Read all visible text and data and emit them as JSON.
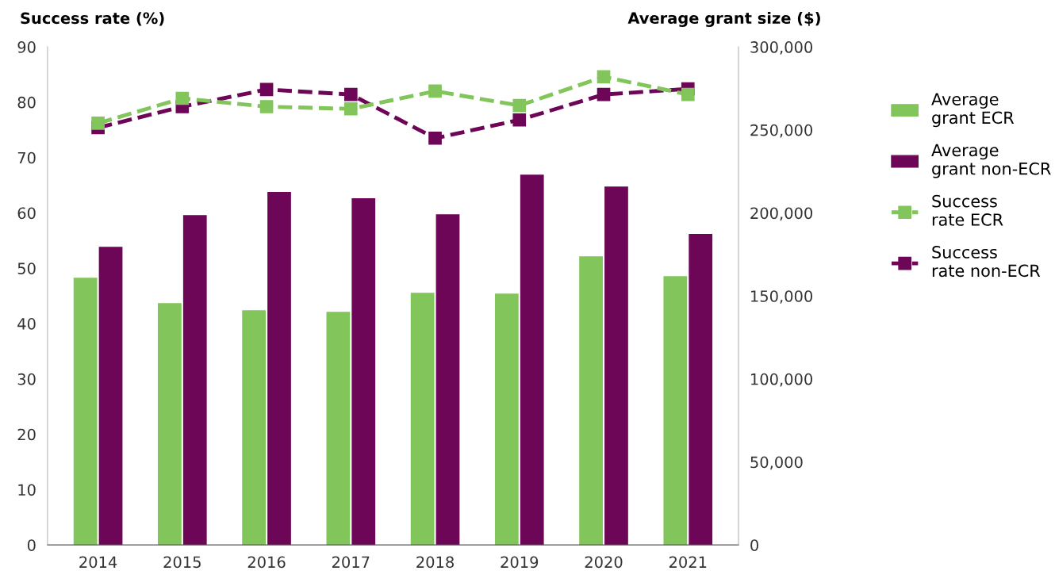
{
  "chart_data": {
    "type": "bar",
    "ylabel": "Success rate (%)",
    "y2label": "Average grant size ($)",
    "categories": [
      "2014",
      "2015",
      "2016",
      "2017",
      "2018",
      "2019",
      "2020",
      "2021"
    ],
    "series": [
      {
        "name": "Average grant ECR",
        "axis": "y2",
        "color": "#82c55b",
        "values": [
          161000,
          145700,
          141400,
          140400,
          151900,
          151400,
          173900,
          161900
        ]
      },
      {
        "name": "Average grant non-ECR",
        "axis": "y2",
        "color": "#6d0657",
        "values": [
          179600,
          198700,
          212600,
          208800,
          199200,
          223100,
          215900,
          187300
        ]
      },
      {
        "name": "Success rate ECR",
        "type": "line",
        "color": "#82c55b",
        "marker": "square",
        "line_style": "dashed",
        "values": [
          76.2,
          80.7,
          79.2,
          78.8,
          82.0,
          79.4,
          84.6,
          81.4
        ]
      },
      {
        "name": "Success rate non-ECR",
        "type": "line",
        "color": "#6d0657",
        "marker": "square",
        "line_style": "dashed",
        "values": [
          75.4,
          79.2,
          82.3,
          81.4,
          73.5,
          76.8,
          81.4,
          82.4
        ]
      }
    ],
    "ylim": [
      0,
      90
    ],
    "yticks": [
      0,
      10,
      20,
      30,
      40,
      50,
      60,
      70,
      80,
      90
    ],
    "y2lim": [
      0,
      300000
    ],
    "y2ticks": [
      0,
      {
        "value": 50000,
        "label": "50,000"
      },
      {
        "value": 100000,
        "label": "100,000"
      },
      {
        "value": 150000,
        "label": "150,000"
      },
      {
        "value": 200000,
        "label": "200,000"
      },
      {
        "value": 250000,
        "label": "250,000"
      },
      {
        "value": 300000,
        "label": "300,000"
      }
    ],
    "grid": false,
    "legend": "right"
  }
}
